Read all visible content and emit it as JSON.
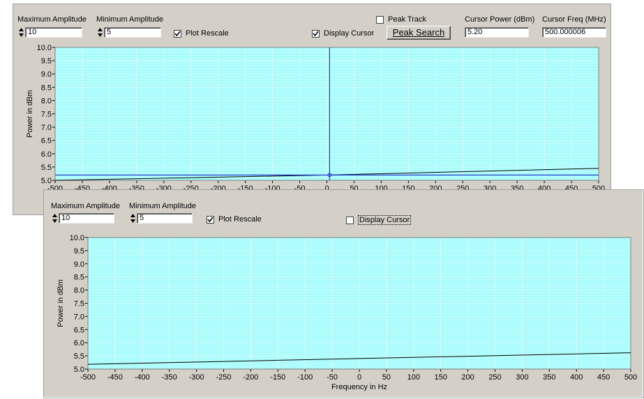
{
  "window1": {
    "max_amplitude_label": "Maximum Amplitude",
    "max_amplitude_value": "10",
    "min_amplitude_label": "Minimum Amplitude",
    "min_amplitude_value": "5",
    "plot_rescale_label": "Plot Rescale",
    "plot_rescale_checked": true,
    "display_cursor_label": "Display Cursor",
    "display_cursor_checked": true,
    "peak_track_label": "Peak Track",
    "peak_track_checked": false,
    "peak_search_label": "Peak Search",
    "cursor_power_label": "Cursor Power (dBm)",
    "cursor_power_value": "5.20",
    "cursor_freq_label": "Cursor Freq (MHz)",
    "cursor_freq_value": "500.000006"
  },
  "window2": {
    "max_amplitude_label": "Maximum Amplitude",
    "max_amplitude_value": "10",
    "min_amplitude_label": "Minimum Amplitude",
    "min_amplitude_value": "5",
    "plot_rescale_label": "Plot Rescale",
    "plot_rescale_checked": true,
    "display_cursor_label": "Display Cursor",
    "display_cursor_checked": false
  },
  "colors": {
    "plot_bg": "#a8fcfc",
    "grid": "#d8fcfc",
    "trace": "#000000",
    "cursor": "#2a3cc8",
    "panel": "#d4d0c8"
  },
  "chart_data": [
    {
      "type": "line",
      "ylabel": "Power in dBm",
      "xlabel": "",
      "xlim": [
        -500,
        500
      ],
      "ylim": [
        5.0,
        10.0
      ],
      "yticks": [
        "10.0",
        "9.5",
        "9.0",
        "8.5",
        "8.0",
        "7.5",
        "7.0",
        "6.5",
        "6.0",
        "5.5",
        "5.0"
      ],
      "xticks": [
        "-500",
        "-450",
        "-400",
        "-350",
        "-300",
        "-250",
        "-200",
        "-150",
        "-100",
        "-50",
        "0",
        "50",
        "100",
        "150",
        "200",
        "250",
        "300",
        "350",
        "400",
        "450",
        "500"
      ],
      "grid": true,
      "series": [
        {
          "x": [
            -500,
            0,
            500
          ],
          "y": [
            5.0,
            5.2,
            5.45
          ]
        }
      ],
      "cursor": {
        "x": 5,
        "y": 5.2
      }
    },
    {
      "type": "line",
      "ylabel": "Power in dBm",
      "xlabel": "Frequency in Hz",
      "xlim": [
        -500,
        500
      ],
      "ylim": [
        5.0,
        10.0
      ],
      "yticks": [
        "10.0",
        "9.5",
        "9.0",
        "8.5",
        "8.0",
        "7.5",
        "7.0",
        "6.5",
        "6.0",
        "5.5",
        "5.0"
      ],
      "xticks": [
        "-500",
        "-450",
        "-400",
        "-350",
        "-300",
        "-250",
        "-200",
        "-150",
        "-100",
        "-50",
        "0",
        "50",
        "100",
        "150",
        "200",
        "250",
        "300",
        "350",
        "400",
        "450",
        "500"
      ],
      "grid": true,
      "series": [
        {
          "x": [
            -500,
            500
          ],
          "y": [
            5.18,
            5.62
          ]
        }
      ]
    }
  ]
}
